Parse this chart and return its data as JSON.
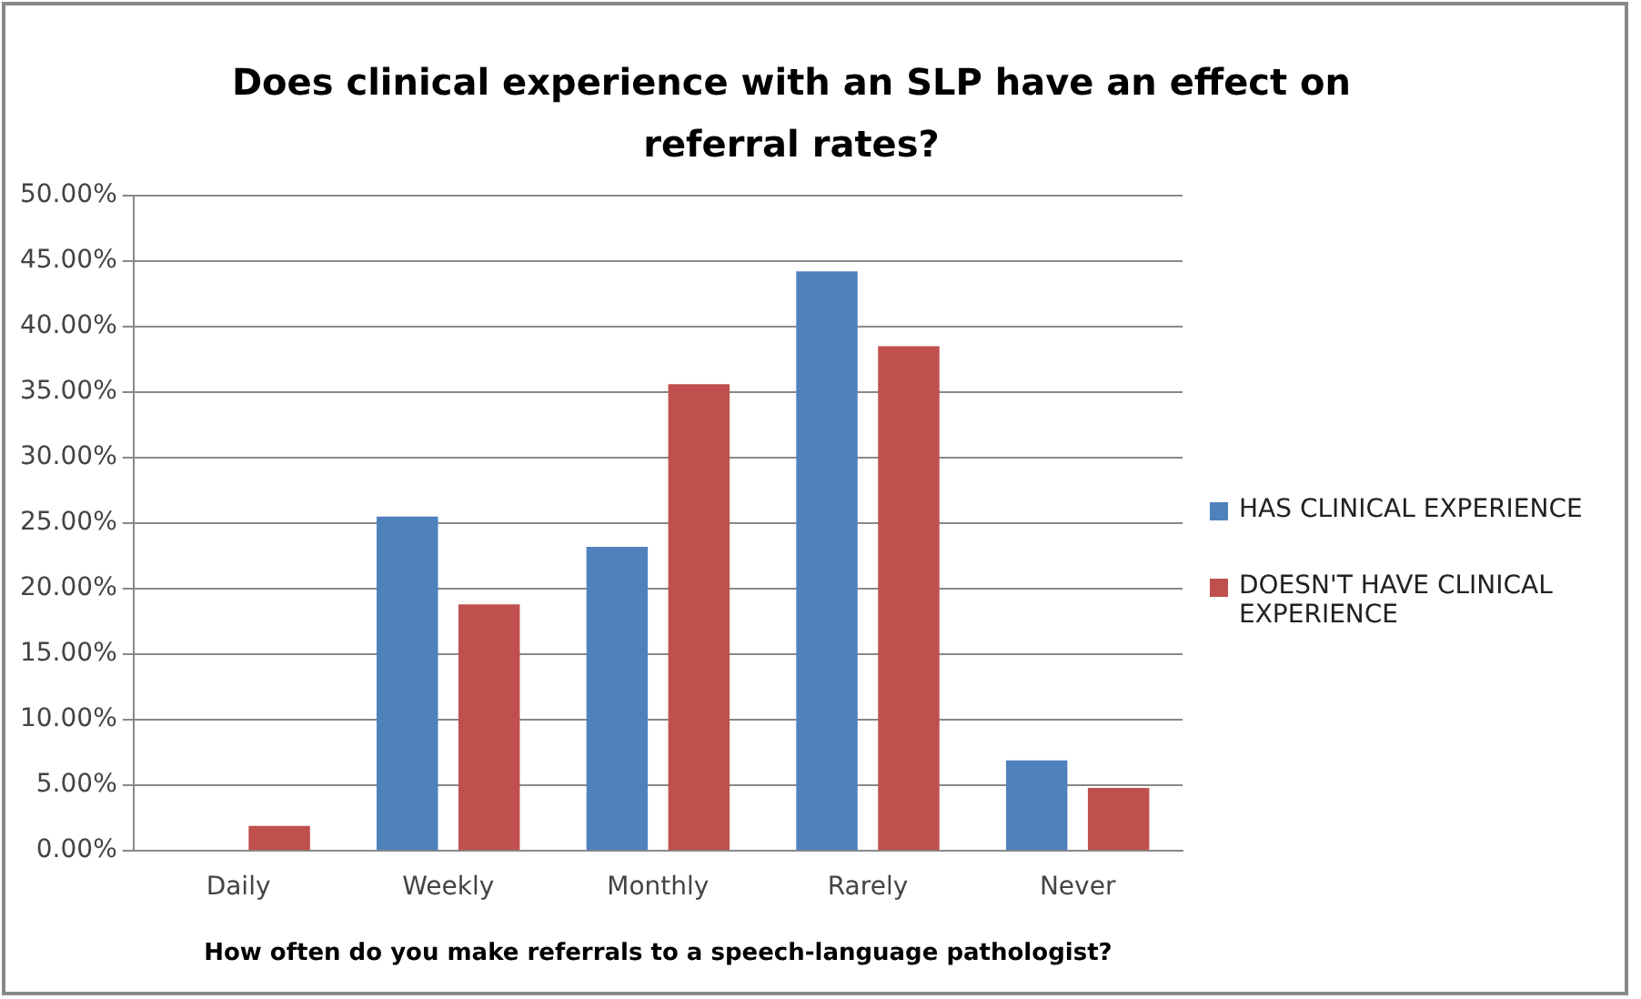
{
  "chart_data": {
    "type": "bar",
    "title": "Does clinical experience with an SLP have an effect on referral rates?",
    "xlabel": "How often do you make referrals to a speech-language pathologist?",
    "categories": [
      "Daily",
      "Weekly",
      "Monthly",
      "Rarely",
      "Never"
    ],
    "series": [
      {
        "name": "HAS CLINICAL EXPERIENCE",
        "color": "#4f81bd",
        "values": [
          0,
          25.5,
          23.2,
          44.2,
          6.9
        ]
      },
      {
        "name": "DOESN'T HAVE CLINICAL EXPERIENCE",
        "color": "#c0504d",
        "values": [
          1.9,
          18.8,
          35.6,
          38.5,
          4.8
        ]
      }
    ],
    "ylim": [
      0,
      50
    ],
    "yticks": [
      {
        "value": 0,
        "label": "0.00%"
      },
      {
        "value": 5,
        "label": "5.00%"
      },
      {
        "value": 10,
        "label": "10.00%"
      },
      {
        "value": 15,
        "label": "15.00%"
      },
      {
        "value": 20,
        "label": "20.00%"
      },
      {
        "value": 25,
        "label": "25.00%"
      },
      {
        "value": 30,
        "label": "30.00%"
      },
      {
        "value": 35,
        "label": "35.00%"
      },
      {
        "value": 40,
        "label": "40.00%"
      },
      {
        "value": 45,
        "label": "45.00%"
      },
      {
        "value": 50,
        "label": "50.00%"
      }
    ],
    "grid": "y",
    "legend": "right"
  }
}
